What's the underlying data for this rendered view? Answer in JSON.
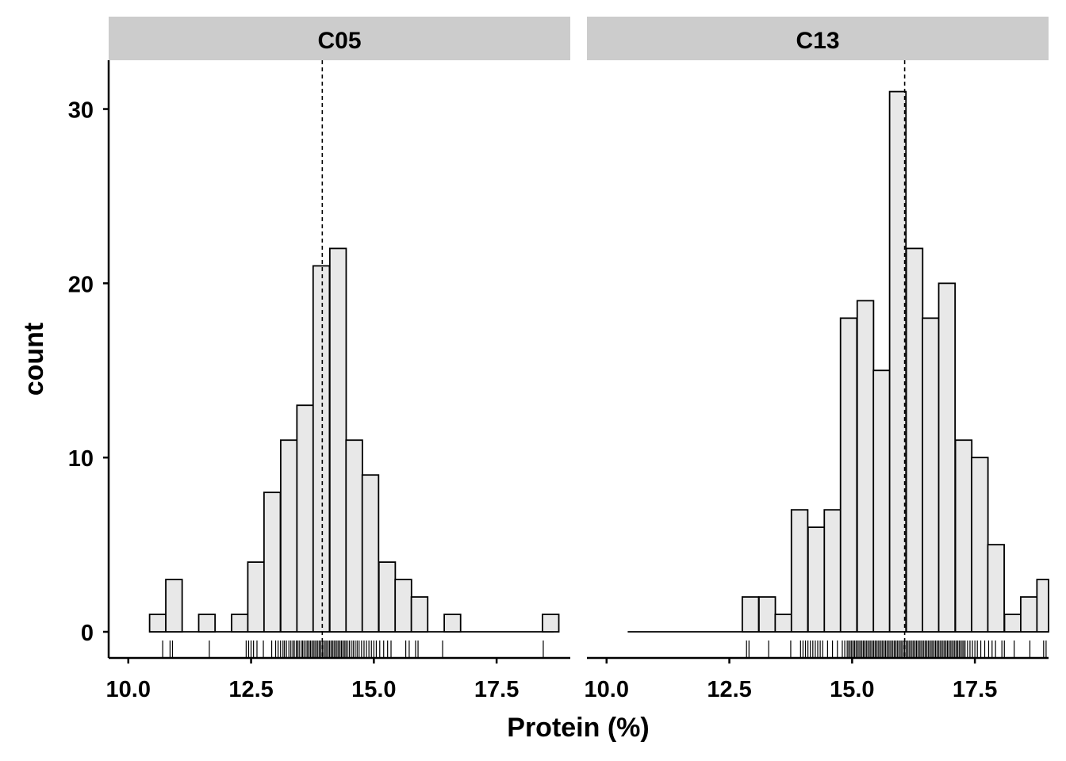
{
  "chart_data": {
    "type": "bar",
    "xlabel": "Protein (%)",
    "ylabel": "count",
    "xlim": [
      9.6,
      19.0
    ],
    "ylim": [
      -1.5,
      32.8
    ],
    "x_ticks": [
      "10.0",
      "12.5",
      "15.0",
      "17.5"
    ],
    "x_tick_values": [
      10.0,
      12.5,
      15.0,
      17.5
    ],
    "y_ticks": [
      "0",
      "10",
      "20",
      "30"
    ],
    "y_tick_values": [
      0,
      10,
      20,
      30
    ],
    "bin_width": 0.333,
    "colors": {
      "bar_fill": "#e8e8e8",
      "bar_stroke": "#000000",
      "strip_fill": "#cccccc"
    },
    "panels": [
      {
        "name": "C05",
        "data_range": [
          10.43,
          18.66
        ],
        "mean": 13.95,
        "bins": [
          {
            "x": 10.6,
            "count": 1
          },
          {
            "x": 10.93,
            "count": 3
          },
          {
            "x": 11.27,
            "count": 0
          },
          {
            "x": 11.6,
            "count": 1
          },
          {
            "x": 11.93,
            "count": 0
          },
          {
            "x": 12.27,
            "count": 1
          },
          {
            "x": 12.6,
            "count": 4
          },
          {
            "x": 12.93,
            "count": 8
          },
          {
            "x": 13.27,
            "count": 11
          },
          {
            "x": 13.6,
            "count": 13
          },
          {
            "x": 13.93,
            "count": 21
          },
          {
            "x": 14.27,
            "count": 22
          },
          {
            "x": 14.6,
            "count": 11
          },
          {
            "x": 14.93,
            "count": 9
          },
          {
            "x": 15.27,
            "count": 4
          },
          {
            "x": 15.6,
            "count": 3
          },
          {
            "x": 15.93,
            "count": 2
          },
          {
            "x": 16.27,
            "count": 0
          },
          {
            "x": 16.6,
            "count": 1
          },
          {
            "x": 16.93,
            "count": 0
          },
          {
            "x": 17.27,
            "count": 0
          },
          {
            "x": 17.6,
            "count": 0
          },
          {
            "x": 17.93,
            "count": 0
          },
          {
            "x": 18.27,
            "count": 0
          },
          {
            "x": 18.6,
            "count": 1
          }
        ],
        "rug": [
          10.7,
          10.85,
          10.9,
          11.65,
          12.4,
          12.45,
          12.5,
          12.55,
          12.62,
          12.75,
          12.92,
          13.0,
          13.05,
          13.1,
          13.15,
          13.18,
          13.22,
          13.27,
          13.31,
          13.35,
          13.38,
          13.42,
          13.45,
          13.48,
          13.52,
          13.55,
          13.58,
          13.62,
          13.65,
          13.68,
          13.71,
          13.74,
          13.77,
          13.8,
          13.83,
          13.86,
          13.89,
          13.92,
          13.95,
          13.98,
          14.01,
          14.04,
          14.07,
          14.1,
          14.13,
          14.16,
          14.19,
          14.22,
          14.25,
          14.28,
          14.31,
          14.34,
          14.37,
          14.4,
          14.43,
          14.46,
          14.5,
          14.54,
          14.58,
          14.62,
          14.66,
          14.7,
          14.75,
          14.8,
          14.85,
          14.9,
          14.95,
          15.0,
          15.05,
          15.12,
          15.2,
          15.28,
          15.35,
          15.65,
          15.72,
          15.85,
          15.9,
          16.4,
          18.45
        ]
      },
      {
        "name": "C13",
        "data_range": [
          10.43,
          19.0
        ],
        "mean": 16.07,
        "bins": [
          {
            "x": 10.6,
            "count": 0
          },
          {
            "x": 10.93,
            "count": 0
          },
          {
            "x": 11.27,
            "count": 0
          },
          {
            "x": 11.6,
            "count": 0
          },
          {
            "x": 11.93,
            "count": 0
          },
          {
            "x": 12.27,
            "count": 0
          },
          {
            "x": 12.6,
            "count": 0
          },
          {
            "x": 12.93,
            "count": 2
          },
          {
            "x": 13.27,
            "count": 2
          },
          {
            "x": 13.6,
            "count": 1
          },
          {
            "x": 13.93,
            "count": 7
          },
          {
            "x": 14.27,
            "count": 6
          },
          {
            "x": 14.6,
            "count": 7
          },
          {
            "x": 14.93,
            "count": 18
          },
          {
            "x": 15.27,
            "count": 19
          },
          {
            "x": 15.6,
            "count": 15
          },
          {
            "x": 15.93,
            "count": 31
          },
          {
            "x": 16.27,
            "count": 22
          },
          {
            "x": 16.6,
            "count": 18
          },
          {
            "x": 16.93,
            "count": 20
          },
          {
            "x": 17.27,
            "count": 11
          },
          {
            "x": 17.6,
            "count": 10
          },
          {
            "x": 17.93,
            "count": 5
          },
          {
            "x": 18.27,
            "count": 1
          },
          {
            "x": 18.6,
            "count": 2
          },
          {
            "x": 18.93,
            "count": 3
          }
        ],
        "rug": [
          12.85,
          12.9,
          13.3,
          13.75,
          13.95,
          14.0,
          14.05,
          14.1,
          14.15,
          14.2,
          14.25,
          14.3,
          14.35,
          14.4,
          14.5,
          14.6,
          14.7,
          14.8,
          14.85,
          14.9,
          14.93,
          14.96,
          14.99,
          15.02,
          15.05,
          15.08,
          15.11,
          15.14,
          15.17,
          15.2,
          15.23,
          15.26,
          15.29,
          15.32,
          15.35,
          15.38,
          15.41,
          15.44,
          15.47,
          15.5,
          15.53,
          15.56,
          15.59,
          15.62,
          15.65,
          15.68,
          15.71,
          15.74,
          15.77,
          15.8,
          15.83,
          15.86,
          15.89,
          15.92,
          15.95,
          15.98,
          16.01,
          16.04,
          16.07,
          16.1,
          16.13,
          16.16,
          16.19,
          16.22,
          16.25,
          16.28,
          16.31,
          16.34,
          16.37,
          16.4,
          16.43,
          16.46,
          16.49,
          16.52,
          16.55,
          16.58,
          16.61,
          16.64,
          16.67,
          16.7,
          16.73,
          16.76,
          16.79,
          16.82,
          16.85,
          16.88,
          16.91,
          16.94,
          16.97,
          17.0,
          17.03,
          17.06,
          17.09,
          17.12,
          17.15,
          17.18,
          17.21,
          17.24,
          17.27,
          17.3,
          17.35,
          17.4,
          17.45,
          17.5,
          17.55,
          17.62,
          17.7,
          17.78,
          17.85,
          17.92,
          18.05,
          18.1,
          18.3,
          18.62,
          18.9,
          18.95
        ]
      }
    ]
  }
}
